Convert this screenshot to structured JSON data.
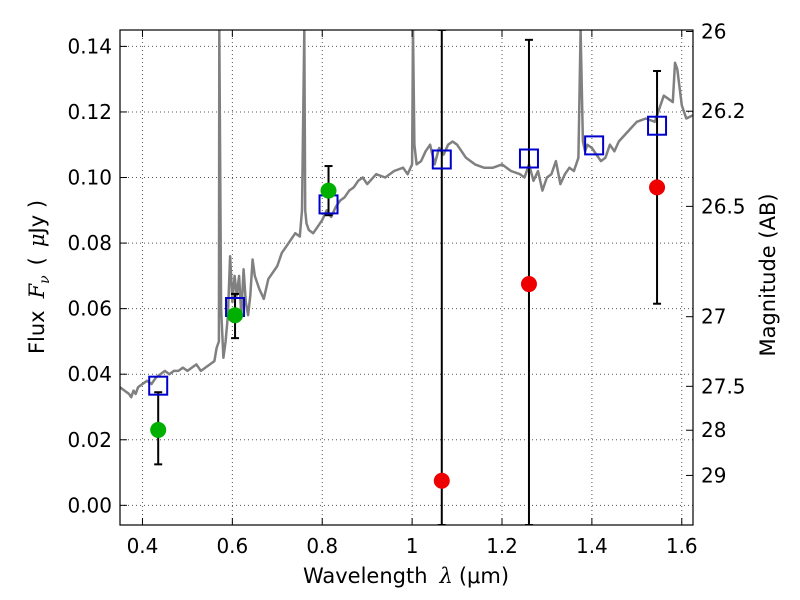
{
  "chart_data": {
    "type": "scatter",
    "xlabel": {
      "text": "Wavelength",
      "symbol": "λ",
      "unit": "(μm)"
    },
    "ylabel": {
      "text": "Flux",
      "symbol": "F",
      "subscript": "ν",
      "unit_open": "(",
      "unit_mu": "μ",
      "unit_rest": "Jy )"
    },
    "y2label": "Magnitude (AB)",
    "xlim": [
      0.35,
      1.625
    ],
    "ylim": [
      -0.006,
      0.145
    ],
    "grid": true,
    "x_ticks": [
      {
        "value": 0.4,
        "label": "0.4"
      },
      {
        "value": 0.6,
        "label": "0.6"
      },
      {
        "value": 0.8,
        "label": "0.8"
      },
      {
        "value": 1.0,
        "label": "1"
      },
      {
        "value": 1.2,
        "label": "1.2"
      },
      {
        "value": 1.4,
        "label": "1.4"
      },
      {
        "value": 1.6,
        "label": "1.6"
      }
    ],
    "y_ticks": [
      {
        "value": 0.0,
        "label": "0.00"
      },
      {
        "value": 0.02,
        "label": "0.02"
      },
      {
        "value": 0.04,
        "label": "0.04"
      },
      {
        "value": 0.06,
        "label": "0.06"
      },
      {
        "value": 0.08,
        "label": "0.08"
      },
      {
        "value": 0.1,
        "label": "0.10"
      },
      {
        "value": 0.12,
        "label": "0.12"
      },
      {
        "value": 0.14,
        "label": "0.14"
      }
    ],
    "y2_ticks": [
      {
        "mag": 26.0,
        "label": "26"
      },
      {
        "mag": 26.2,
        "label": "26.2"
      },
      {
        "mag": 26.5,
        "label": "26.5"
      },
      {
        "mag": 27.0,
        "label": "27"
      },
      {
        "mag": 27.5,
        "label": "27.5"
      },
      {
        "mag": 28.0,
        "label": "28"
      },
      {
        "mag": 29.0,
        "label": "29"
      }
    ],
    "detections": [
      {
        "x": 0.435,
        "y": 0.023,
        "yerr_low": 0.0125,
        "yerr_high": 0.0345
      },
      {
        "x": 0.606,
        "y": 0.058,
        "yerr_low": 0.051,
        "yerr_high": 0.0645
      },
      {
        "x": 0.814,
        "y": 0.096,
        "yerr_low": 0.0885,
        "yerr_high": 0.1035
      }
    ],
    "nondetections": [
      {
        "x": 1.066,
        "y": 0.0075,
        "yerr_low": -0.006,
        "yerr_high": 0.145
      },
      {
        "x": 1.26,
        "y": 0.0675,
        "yerr_low": -0.006,
        "yerr_high": 0.142
      },
      {
        "x": 1.545,
        "y": 0.097,
        "yerr_low": 0.0615,
        "yerr_high": 0.1325
      }
    ],
    "model_photometry": [
      {
        "x": 0.435,
        "y": 0.0365
      },
      {
        "x": 0.606,
        "y": 0.0605
      },
      {
        "x": 0.814,
        "y": 0.0918
      },
      {
        "x": 1.066,
        "y": 0.1055
      },
      {
        "x": 1.26,
        "y": 0.1058
      },
      {
        "x": 1.405,
        "y": 0.1098
      },
      {
        "x": 1.545,
        "y": 0.1158
      }
    ],
    "model_spectrum": {
      "x": [
        0.35,
        0.36,
        0.37,
        0.375,
        0.38,
        0.385,
        0.39,
        0.4,
        0.41,
        0.42,
        0.43,
        0.44,
        0.45,
        0.46,
        0.47,
        0.48,
        0.49,
        0.5,
        0.51,
        0.52,
        0.53,
        0.54,
        0.55,
        0.56,
        0.565,
        0.57,
        0.571,
        0.575,
        0.58,
        0.585,
        0.59,
        0.595,
        0.6,
        0.605,
        0.61,
        0.615,
        0.62,
        0.625,
        0.63,
        0.635,
        0.64,
        0.645,
        0.65,
        0.66,
        0.67,
        0.68,
        0.69,
        0.7,
        0.71,
        0.72,
        0.73,
        0.74,
        0.75,
        0.755,
        0.76,
        0.762,
        0.765,
        0.77,
        0.78,
        0.79,
        0.8,
        0.81,
        0.82,
        0.83,
        0.84,
        0.85,
        0.86,
        0.87,
        0.88,
        0.89,
        0.9,
        0.92,
        0.94,
        0.96,
        0.98,
        0.99,
        1.0,
        1.002,
        1.005,
        1.01,
        1.02,
        1.03,
        1.04,
        1.05,
        1.06,
        1.07,
        1.08,
        1.09,
        1.1,
        1.12,
        1.14,
        1.16,
        1.18,
        1.2,
        1.22,
        1.24,
        1.25,
        1.26,
        1.27,
        1.28,
        1.29,
        1.3,
        1.31,
        1.32,
        1.33,
        1.34,
        1.35,
        1.36,
        1.37,
        1.375,
        1.38,
        1.385,
        1.39,
        1.4,
        1.41,
        1.42,
        1.43,
        1.44,
        1.45,
        1.46,
        1.48,
        1.5,
        1.52,
        1.54,
        1.55,
        1.56,
        1.57,
        1.58,
        1.585,
        1.59,
        1.6,
        1.61,
        1.625
      ],
      "y": [
        0.036,
        0.035,
        0.034,
        0.033,
        0.035,
        0.034,
        0.036,
        0.037,
        0.038,
        0.037,
        0.039,
        0.04,
        0.041,
        0.04,
        0.041,
        0.041,
        0.042,
        0.041,
        0.042,
        0.043,
        0.041,
        0.042,
        0.043,
        0.044,
        0.048,
        0.05,
        0.145,
        0.06,
        0.045,
        0.05,
        0.058,
        0.076,
        0.062,
        0.07,
        0.064,
        0.07,
        0.058,
        0.072,
        0.062,
        0.058,
        0.064,
        0.075,
        0.07,
        0.066,
        0.063,
        0.069,
        0.071,
        0.073,
        0.077,
        0.079,
        0.081,
        0.083,
        0.082,
        0.09,
        0.145,
        0.09,
        0.086,
        0.084,
        0.083,
        0.085,
        0.087,
        0.09,
        0.088,
        0.091,
        0.093,
        0.094,
        0.096,
        0.097,
        0.099,
        0.1,
        0.098,
        0.101,
        0.1,
        0.102,
        0.103,
        0.101,
        0.104,
        0.145,
        0.11,
        0.104,
        0.105,
        0.108,
        0.11,
        0.104,
        0.109,
        0.107,
        0.11,
        0.111,
        0.11,
        0.106,
        0.104,
        0.103,
        0.103,
        0.104,
        0.102,
        0.101,
        0.1,
        0.104,
        0.099,
        0.102,
        0.096,
        0.1,
        0.101,
        0.105,
        0.098,
        0.101,
        0.103,
        0.102,
        0.106,
        0.145,
        0.111,
        0.108,
        0.11,
        0.109,
        0.107,
        0.105,
        0.106,
        0.11,
        0.108,
        0.111,
        0.114,
        0.117,
        0.118,
        0.117,
        0.121,
        0.125,
        0.124,
        0.123,
        0.135,
        0.133,
        0.122,
        0.118,
        0.119
      ]
    },
    "colors": {
      "detections": "#00b000",
      "nondetections": "#ee0000",
      "model_photometry": "#0000cc",
      "model_spectrum": "#808080",
      "errorbar": "#000000",
      "grid": "#555555"
    }
  }
}
